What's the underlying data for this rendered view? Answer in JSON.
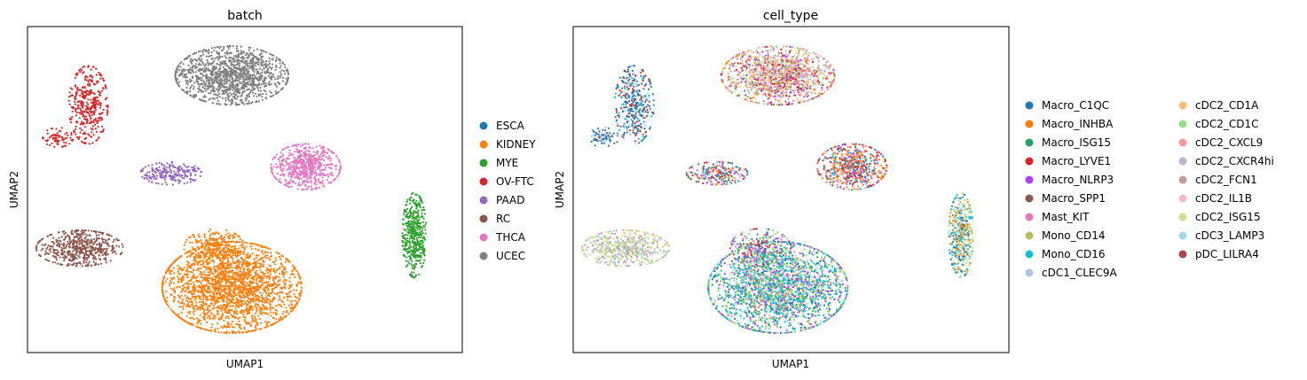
{
  "chart_data": [
    {
      "type": "scatter",
      "title": "batch",
      "xlabel": "UMAP1",
      "ylabel": "UMAP2",
      "grid": false,
      "legend_placement": "right",
      "legend_columns": 1,
      "series": [
        {
          "name": "ESCA",
          "color": "#1f77b4"
        },
        {
          "name": "KIDNEY",
          "color": "#ff7f0e"
        },
        {
          "name": "MYE",
          "color": "#2ca02c"
        },
        {
          "name": "OV-FTC",
          "color": "#d62728"
        },
        {
          "name": "PAAD",
          "color": "#9467bd"
        },
        {
          "name": "RC",
          "color": "#8c564b"
        },
        {
          "name": "THCA",
          "color": "#e377c2"
        },
        {
          "name": "UCEC",
          "color": "#7f7f7f"
        }
      ],
      "clusters": [
        {
          "series": "UCEC",
          "x": 0.47,
          "y": 0.85,
          "rx": 0.13,
          "ry": 0.09,
          "rot": -12,
          "n": 5200
        },
        {
          "series": "OV-FTC",
          "x": 0.14,
          "y": 0.76,
          "rx": 0.045,
          "ry": 0.12,
          "rot": -10,
          "n": 1500
        },
        {
          "series": "OV-FTC",
          "x": 0.07,
          "y": 0.66,
          "rx": 0.035,
          "ry": 0.03,
          "rot": 0,
          "n": 300
        },
        {
          "series": "PAAD",
          "x": 0.33,
          "y": 0.55,
          "rx": 0.07,
          "ry": 0.035,
          "rot": 0,
          "n": 900
        },
        {
          "series": "THCA",
          "x": 0.64,
          "y": 0.57,
          "rx": 0.08,
          "ry": 0.07,
          "rot": -15,
          "n": 2500
        },
        {
          "series": "RC",
          "x": 0.12,
          "y": 0.32,
          "rx": 0.1,
          "ry": 0.055,
          "rot": 0,
          "n": 2200
        },
        {
          "series": "KIDNEY",
          "x": 0.47,
          "y": 0.2,
          "rx": 0.16,
          "ry": 0.14,
          "rot": 0,
          "n": 9000
        },
        {
          "series": "KIDNEY",
          "x": 0.43,
          "y": 0.32,
          "rx": 0.07,
          "ry": 0.06,
          "rot": 0,
          "n": 1200
        },
        {
          "series": "MYE",
          "x": 0.89,
          "y": 0.36,
          "rx": 0.028,
          "ry": 0.13,
          "rot": 8,
          "n": 1800
        }
      ]
    },
    {
      "type": "scatter",
      "title": "cell_type",
      "xlabel": "UMAP1",
      "ylabel": "UMAP2",
      "grid": false,
      "legend_placement": "right",
      "legend_columns": 2,
      "series": [
        {
          "name": "Macro_C1QC",
          "color": "#1f77b4"
        },
        {
          "name": "Macro_INHBA",
          "color": "#ff7f0e"
        },
        {
          "name": "Macro_ISG15",
          "color": "#279e68"
        },
        {
          "name": "Macro_LYVE1",
          "color": "#d62728"
        },
        {
          "name": "Macro_NLRP3",
          "color": "#aa40fc"
        },
        {
          "name": "Macro_SPP1",
          "color": "#8c564b"
        },
        {
          "name": "Mast_KIT",
          "color": "#e377c2"
        },
        {
          "name": "Mono_CD14",
          "color": "#b5bd61"
        },
        {
          "name": "Mono_CD16",
          "color": "#17becf"
        },
        {
          "name": "cDC1_CLEC9A",
          "color": "#aec7e8"
        },
        {
          "name": "cDC2_CD1A",
          "color": "#ffbb78"
        },
        {
          "name": "cDC2_CD1C",
          "color": "#98df8a"
        },
        {
          "name": "cDC2_CXCL9",
          "color": "#ff9896"
        },
        {
          "name": "cDC2_CXCR4hi",
          "color": "#c5b0d5"
        },
        {
          "name": "cDC2_FCN1",
          "color": "#c49c94"
        },
        {
          "name": "cDC2_IL1B",
          "color": "#f7b6d2"
        },
        {
          "name": "cDC2_ISG15",
          "color": "#dbdb8d"
        },
        {
          "name": "cDC3_LAMP3",
          "color": "#9edae5"
        },
        {
          "name": "pDC_LILRA4",
          "color": "#ad494a"
        }
      ],
      "clusters": [
        {
          "mix": [
            1,
            3,
            4,
            5,
            6,
            7,
            10,
            11,
            12,
            13,
            14,
            15,
            16
          ],
          "x": 0.47,
          "y": 0.85,
          "rx": 0.13,
          "ry": 0.09,
          "rot": -12,
          "n": 5200
        },
        {
          "mix": [
            0,
            0,
            0,
            5,
            3,
            8,
            17
          ],
          "x": 0.14,
          "y": 0.76,
          "rx": 0.045,
          "ry": 0.12,
          "rot": -10,
          "n": 1500
        },
        {
          "mix": [
            0,
            0,
            9,
            5
          ],
          "x": 0.07,
          "y": 0.66,
          "rx": 0.035,
          "ry": 0.03,
          "rot": 0,
          "n": 300
        },
        {
          "mix": [
            0,
            1,
            2,
            3,
            4,
            5,
            6,
            8,
            12,
            15
          ],
          "x": 0.33,
          "y": 0.55,
          "rx": 0.07,
          "ry": 0.035,
          "rot": 0,
          "n": 900
        },
        {
          "mix": [
            1,
            1,
            0,
            3,
            4,
            5,
            6,
            8,
            10,
            12,
            18
          ],
          "x": 0.64,
          "y": 0.57,
          "rx": 0.08,
          "ry": 0.07,
          "rot": -15,
          "n": 2500
        },
        {
          "mix": [
            16,
            16,
            13,
            11,
            14,
            9
          ],
          "x": 0.12,
          "y": 0.32,
          "rx": 0.1,
          "ry": 0.055,
          "rot": 0,
          "n": 2200
        },
        {
          "mix": [
            8,
            8,
            8,
            7,
            7,
            11,
            0,
            6,
            2,
            4,
            17
          ],
          "x": 0.47,
          "y": 0.2,
          "rx": 0.16,
          "ry": 0.14,
          "rot": 0,
          "n": 9000
        },
        {
          "mix": [
            11,
            11,
            2,
            0,
            6,
            4,
            3
          ],
          "x": 0.43,
          "y": 0.32,
          "rx": 0.07,
          "ry": 0.06,
          "rot": 0,
          "n": 1200
        },
        {
          "mix": [
            0,
            8,
            17,
            7,
            16,
            1
          ],
          "x": 0.89,
          "y": 0.36,
          "rx": 0.028,
          "ry": 0.13,
          "rot": 8,
          "n": 1800
        }
      ]
    }
  ]
}
